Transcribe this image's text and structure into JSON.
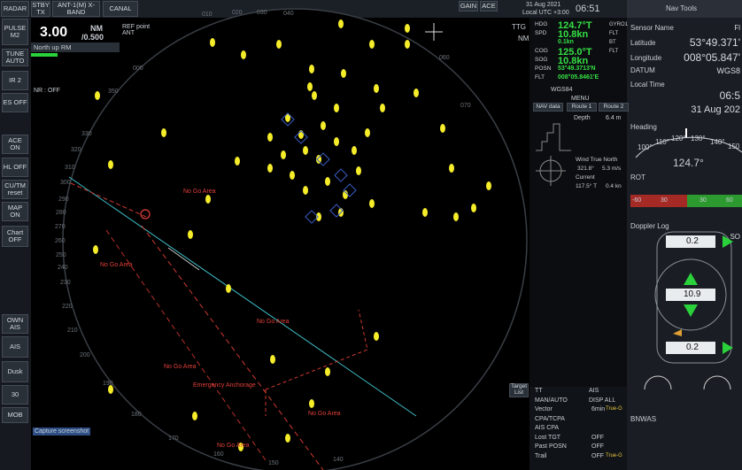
{
  "top_bar": {
    "radar": "RADAR",
    "stby": "STBY TX",
    "antenna": "ANT-1(M) X-BAND",
    "canal": "CANAL",
    "gain": "GAIN",
    "ace": "ACE",
    "date": "31 Aug 2021",
    "utc": "Local UTC +3:00",
    "time": "06:51"
  },
  "range": {
    "value": "3.00",
    "unit": "NM",
    "rings": "/0.500",
    "ref": "REF point ANT",
    "mode": "North up RM",
    "nr": "NR : OFF"
  },
  "left_buttons": [
    "PULSE M2",
    "TUNE AUTO",
    "IR 2",
    "ES OFF",
    "ACE ON",
    "HL OFF",
    "CU/TM reset",
    "MAP ON",
    "Chart OFF",
    "OWN AIS",
    "AIS",
    "Dusk",
    "30",
    "MOB"
  ],
  "capture": "Capture screenshot",
  "bearing_labels": [
    "000",
    "010",
    "020",
    "030",
    "040",
    "060",
    "070",
    "350",
    "330",
    "320",
    "310",
    "300",
    "290",
    "280",
    "270",
    "260",
    "250",
    "240",
    "230",
    "220",
    "210",
    "200",
    "190",
    "180",
    "170",
    "160",
    "150",
    "140"
  ],
  "areas": [
    "No Go Area",
    "No Go Area",
    "No Go Area",
    "No Go Area",
    "No Go Area",
    "No Go Area"
  ],
  "anchorage": "Emergency Anchorage",
  "ttg": {
    "label": "TTG",
    "unit": "NM"
  },
  "own_ship": {
    "rows": [
      {
        "label": "HDG",
        "value": "124.7°T",
        "source": "GYRO1"
      },
      {
        "label": "SPD",
        "value": "10.8kn",
        "source": "FLT"
      },
      {
        "label": "",
        "value": "0.1kn",
        "source": "BT"
      },
      {
        "label": "COG",
        "value": "125.0°T",
        "source": "FLT"
      },
      {
        "label": "SOG",
        "value": "10.8kn",
        "source": ""
      },
      {
        "label": "POSN",
        "value": "53°49.3713'N",
        "source": ""
      },
      {
        "label": "FLT",
        "value": "008°05.8461'E",
        "source": ""
      }
    ],
    "datum": "WGS84"
  },
  "nav_data": {
    "menu": "MENU",
    "tabs": [
      "NAV data",
      "Route 1",
      "Route 2"
    ],
    "depth_label": "Depth",
    "depth": "6.4 m",
    "wind_label": "Wind True North",
    "wind_dir": "321.8°",
    "wind_speed": "5.3 m/s",
    "current_label": "Current",
    "current_dir": "117.5° T",
    "current_speed": "0.4 kn"
  },
  "nav_tools": {
    "title": "Nav Tools",
    "sensor": "Sensor Name",
    "sensor_value": "Fl",
    "lat_label": "Latitude",
    "lat": "53°49.371'",
    "lon_label": "Longitude",
    "lon": "008°05.847'",
    "datum_label": "DATUM",
    "datum": "WGS8",
    "time_label": "Local Time",
    "time": "06:5",
    "date": "31 Aug 202",
    "heading_label": "Heading",
    "heading_ticks": [
      "100°",
      "110°",
      "120°",
      "130°",
      "140°",
      "150"
    ],
    "heading": "124.7°",
    "rot_label": "ROT",
    "rot_ticks": [
      "-60",
      "30",
      "30",
      "60"
    ],
    "doppler_label": "Doppler Log",
    "doppler_mode": "SO",
    "doppler": [
      "0.2",
      "10.9",
      "0.2"
    ],
    "bnwas": "BNWAS"
  },
  "target_menu": {
    "list": "Target List",
    "rows": [
      [
        "TT",
        "AIS",
        ""
      ],
      [
        "MAN/AUTO",
        "DISP ALL",
        ""
      ],
      [
        "Vector",
        "6min",
        "True-G"
      ],
      [
        "CPA/TCPA",
        "",
        ""
      ],
      [
        "AIS CPA",
        "",
        ""
      ],
      [
        "Lost TGT",
        "OFF",
        ""
      ],
      [
        "Past POSN",
        "OFF",
        ""
      ],
      [
        "Trail",
        "OFF",
        "True-G"
      ]
    ]
  }
}
